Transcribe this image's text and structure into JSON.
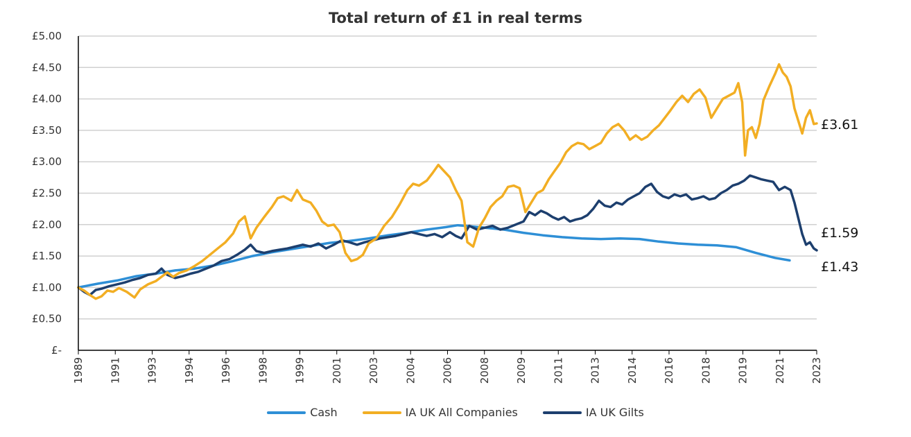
{
  "chart_data": {
    "type": "line",
    "title": "Total return of £1 in real terms",
    "xlabel": "",
    "ylabel": "",
    "ylim": [
      0,
      5
    ],
    "yticks": [
      "£-",
      "£0.50",
      "£1.00",
      "£1.50",
      "£2.00",
      "£2.50",
      "£3.00",
      "£3.50",
      "£4.00",
      "£4.50",
      "£5.00"
    ],
    "xticks": [
      "1989",
      "1991",
      "1993",
      "1994",
      "1996",
      "1998",
      "1999",
      "2001",
      "2003",
      "2004",
      "2006",
      "2008",
      "2009",
      "2011",
      "2013",
      "2014",
      "2016",
      "2018",
      "2019",
      "2021",
      "2023"
    ],
    "grid": "horizontal",
    "legend_position": "bottom",
    "series": [
      {
        "name": "Cash",
        "color": "#2e8fd6",
        "end_label": "£1.43",
        "points": [
          [
            0,
            1.0
          ],
          [
            0.5,
            1.03
          ],
          [
            1,
            1.06
          ],
          [
            2,
            1.11
          ],
          [
            3,
            1.18
          ],
          [
            4,
            1.22
          ],
          [
            5,
            1.27
          ],
          [
            6,
            1.3
          ],
          [
            7,
            1.35
          ],
          [
            8,
            1.42
          ],
          [
            9,
            1.5
          ],
          [
            10,
            1.56
          ],
          [
            11,
            1.61
          ],
          [
            12,
            1.66
          ],
          [
            13,
            1.71
          ],
          [
            14,
            1.74
          ],
          [
            15,
            1.78
          ],
          [
            16,
            1.83
          ],
          [
            17,
            1.87
          ],
          [
            18,
            1.92
          ],
          [
            19,
            1.96
          ],
          [
            19.6,
            1.99
          ],
          [
            20,
            1.98
          ],
          [
            21,
            1.95
          ],
          [
            22,
            1.92
          ],
          [
            23,
            1.87
          ],
          [
            24,
            1.83
          ],
          [
            25,
            1.8
          ],
          [
            26,
            1.78
          ],
          [
            27,
            1.77
          ],
          [
            28,
            1.78
          ],
          [
            29,
            1.77
          ],
          [
            30,
            1.73
          ],
          [
            31,
            1.7
          ],
          [
            32,
            1.68
          ],
          [
            33,
            1.67
          ],
          [
            34,
            1.64
          ],
          [
            35,
            1.55
          ],
          [
            36,
            1.47
          ],
          [
            36.75,
            1.43
          ]
        ]
      },
      {
        "name": "IA UK All Companies",
        "color": "#f2ae23",
        "end_label": "£3.61",
        "points": [
          [
            0,
            1.0
          ],
          [
            0.3,
            0.95
          ],
          [
            0.6,
            0.88
          ],
          [
            0.9,
            0.82
          ],
          [
            1.2,
            0.86
          ],
          [
            1.5,
            0.95
          ],
          [
            1.8,
            0.93
          ],
          [
            2.1,
            0.99
          ],
          [
            2.5,
            0.93
          ],
          [
            2.9,
            0.84
          ],
          [
            3.2,
            0.97
          ],
          [
            3.6,
            1.05
          ],
          [
            4,
            1.1
          ],
          [
            4.3,
            1.17
          ],
          [
            4.6,
            1.24
          ],
          [
            4.9,
            1.17
          ],
          [
            5.2,
            1.23
          ],
          [
            5.6,
            1.27
          ],
          [
            6,
            1.34
          ],
          [
            6.4,
            1.42
          ],
          [
            6.8,
            1.52
          ],
          [
            7.2,
            1.62
          ],
          [
            7.6,
            1.72
          ],
          [
            8,
            1.86
          ],
          [
            8.3,
            2.05
          ],
          [
            8.6,
            2.13
          ],
          [
            8.9,
            1.78
          ],
          [
            9.2,
            1.95
          ],
          [
            9.6,
            2.12
          ],
          [
            10,
            2.28
          ],
          [
            10.3,
            2.42
          ],
          [
            10.6,
            2.45
          ],
          [
            11,
            2.38
          ],
          [
            11.3,
            2.55
          ],
          [
            11.6,
            2.4
          ],
          [
            12,
            2.35
          ],
          [
            12.3,
            2.22
          ],
          [
            12.6,
            2.05
          ],
          [
            12.9,
            1.98
          ],
          [
            13.2,
            2.0
          ],
          [
            13.5,
            1.88
          ],
          [
            13.8,
            1.55
          ],
          [
            14.1,
            1.42
          ],
          [
            14.4,
            1.45
          ],
          [
            14.7,
            1.52
          ],
          [
            15,
            1.7
          ],
          [
            15.4,
            1.78
          ],
          [
            15.8,
            1.98
          ],
          [
            16.2,
            2.12
          ],
          [
            16.6,
            2.32
          ],
          [
            17,
            2.55
          ],
          [
            17.3,
            2.65
          ],
          [
            17.6,
            2.62
          ],
          [
            18,
            2.7
          ],
          [
            18.3,
            2.82
          ],
          [
            18.6,
            2.95
          ],
          [
            18.9,
            2.85
          ],
          [
            19.2,
            2.75
          ],
          [
            19.5,
            2.55
          ],
          [
            19.8,
            2.38
          ],
          [
            20.1,
            1.72
          ],
          [
            20.4,
            1.65
          ],
          [
            20.7,
            1.95
          ],
          [
            21,
            2.1
          ],
          [
            21.3,
            2.28
          ],
          [
            21.6,
            2.38
          ],
          [
            21.9,
            2.45
          ],
          [
            22.2,
            2.6
          ],
          [
            22.5,
            2.62
          ],
          [
            22.8,
            2.58
          ],
          [
            23.1,
            2.2
          ],
          [
            23.4,
            2.35
          ],
          [
            23.7,
            2.5
          ],
          [
            24,
            2.55
          ],
          [
            24.3,
            2.72
          ],
          [
            24.6,
            2.85
          ],
          [
            24.9,
            2.98
          ],
          [
            25.2,
            3.15
          ],
          [
            25.5,
            3.25
          ],
          [
            25.8,
            3.3
          ],
          [
            26.1,
            3.28
          ],
          [
            26.4,
            3.2
          ],
          [
            26.7,
            3.25
          ],
          [
            27,
            3.3
          ],
          [
            27.3,
            3.45
          ],
          [
            27.6,
            3.55
          ],
          [
            27.9,
            3.6
          ],
          [
            28.2,
            3.5
          ],
          [
            28.5,
            3.35
          ],
          [
            28.8,
            3.42
          ],
          [
            29.1,
            3.35
          ],
          [
            29.4,
            3.4
          ],
          [
            29.7,
            3.5
          ],
          [
            30,
            3.58
          ],
          [
            30.3,
            3.7
          ],
          [
            30.6,
            3.82
          ],
          [
            30.9,
            3.95
          ],
          [
            31.2,
            4.05
          ],
          [
            31.5,
            3.95
          ],
          [
            31.8,
            4.08
          ],
          [
            32.1,
            4.15
          ],
          [
            32.4,
            4.02
          ],
          [
            32.7,
            3.7
          ],
          [
            33,
            3.85
          ],
          [
            33.3,
            4.0
          ],
          [
            33.6,
            4.05
          ],
          [
            33.9,
            4.1
          ],
          [
            34.1,
            4.25
          ],
          [
            34.3,
            3.95
          ],
          [
            34.45,
            3.1
          ],
          [
            34.6,
            3.5
          ],
          [
            34.8,
            3.55
          ],
          [
            35,
            3.38
          ],
          [
            35.2,
            3.6
          ],
          [
            35.4,
            3.98
          ],
          [
            35.7,
            4.2
          ],
          [
            36,
            4.4
          ],
          [
            36.2,
            4.55
          ],
          [
            36.4,
            4.42
          ],
          [
            36.6,
            4.35
          ],
          [
            36.8,
            4.2
          ],
          [
            37.0,
            3.85
          ],
          [
            37.2,
            3.65
          ],
          [
            37.4,
            3.45
          ],
          [
            37.6,
            3.7
          ],
          [
            37.8,
            3.82
          ],
          [
            38.0,
            3.6
          ],
          [
            38.15,
            3.61
          ]
        ]
      },
      {
        "name": "IA UK Gilts",
        "color": "#1d3f6e",
        "end_label": "£1.59",
        "points": [
          [
            0,
            1.0
          ],
          [
            0.3,
            0.93
          ],
          [
            0.6,
            0.88
          ],
          [
            0.9,
            0.96
          ],
          [
            1.2,
            0.98
          ],
          [
            1.6,
            1.02
          ],
          [
            2,
            1.05
          ],
          [
            2.4,
            1.08
          ],
          [
            2.8,
            1.12
          ],
          [
            3.2,
            1.15
          ],
          [
            3.6,
            1.2
          ],
          [
            4,
            1.22
          ],
          [
            4.3,
            1.3
          ],
          [
            4.6,
            1.2
          ],
          [
            5,
            1.15
          ],
          [
            5.4,
            1.18
          ],
          [
            5.8,
            1.22
          ],
          [
            6.2,
            1.25
          ],
          [
            6.6,
            1.3
          ],
          [
            7,
            1.35
          ],
          [
            7.4,
            1.42
          ],
          [
            7.8,
            1.45
          ],
          [
            8.2,
            1.52
          ],
          [
            8.6,
            1.6
          ],
          [
            8.9,
            1.68
          ],
          [
            9.2,
            1.58
          ],
          [
            9.6,
            1.55
          ],
          [
            10,
            1.58
          ],
          [
            10.4,
            1.6
          ],
          [
            10.8,
            1.62
          ],
          [
            11.2,
            1.65
          ],
          [
            11.6,
            1.68
          ],
          [
            12,
            1.65
          ],
          [
            12.4,
            1.7
          ],
          [
            12.8,
            1.62
          ],
          [
            13.2,
            1.68
          ],
          [
            13.6,
            1.75
          ],
          [
            14,
            1.72
          ],
          [
            14.4,
            1.68
          ],
          [
            14.8,
            1.72
          ],
          [
            15.2,
            1.75
          ],
          [
            15.6,
            1.78
          ],
          [
            16,
            1.8
          ],
          [
            16.4,
            1.82
          ],
          [
            16.8,
            1.85
          ],
          [
            17.2,
            1.88
          ],
          [
            17.6,
            1.85
          ],
          [
            18,
            1.82
          ],
          [
            18.4,
            1.85
          ],
          [
            18.8,
            1.8
          ],
          [
            19.2,
            1.88
          ],
          [
            19.5,
            1.82
          ],
          [
            19.8,
            1.78
          ],
          [
            20.2,
            1.98
          ],
          [
            20.6,
            1.92
          ],
          [
            21,
            1.95
          ],
          [
            21.4,
            1.98
          ],
          [
            21.8,
            1.92
          ],
          [
            22.2,
            1.95
          ],
          [
            22.6,
            2.0
          ],
          [
            23,
            2.05
          ],
          [
            23.3,
            2.2
          ],
          [
            23.6,
            2.15
          ],
          [
            23.9,
            2.22
          ],
          [
            24.2,
            2.18
          ],
          [
            24.5,
            2.12
          ],
          [
            24.8,
            2.08
          ],
          [
            25.1,
            2.12
          ],
          [
            25.4,
            2.05
          ],
          [
            25.7,
            2.08
          ],
          [
            26,
            2.1
          ],
          [
            26.3,
            2.15
          ],
          [
            26.6,
            2.25
          ],
          [
            26.9,
            2.38
          ],
          [
            27.2,
            2.3
          ],
          [
            27.5,
            2.28
          ],
          [
            27.8,
            2.35
          ],
          [
            28.1,
            2.32
          ],
          [
            28.4,
            2.4
          ],
          [
            28.7,
            2.45
          ],
          [
            29,
            2.5
          ],
          [
            29.3,
            2.6
          ],
          [
            29.6,
            2.65
          ],
          [
            29.9,
            2.52
          ],
          [
            30.2,
            2.45
          ],
          [
            30.5,
            2.42
          ],
          [
            30.8,
            2.48
          ],
          [
            31.1,
            2.45
          ],
          [
            31.4,
            2.48
          ],
          [
            31.7,
            2.4
          ],
          [
            32,
            2.42
          ],
          [
            32.3,
            2.45
          ],
          [
            32.6,
            2.4
          ],
          [
            32.9,
            2.42
          ],
          [
            33.2,
            2.5
          ],
          [
            33.5,
            2.55
          ],
          [
            33.8,
            2.62
          ],
          [
            34.1,
            2.65
          ],
          [
            34.4,
            2.7
          ],
          [
            34.7,
            2.78
          ],
          [
            35,
            2.75
          ],
          [
            35.3,
            2.72
          ],
          [
            35.6,
            2.7
          ],
          [
            35.9,
            2.68
          ],
          [
            36.2,
            2.55
          ],
          [
            36.5,
            2.6
          ],
          [
            36.8,
            2.55
          ],
          [
            37,
            2.35
          ],
          [
            37.2,
            2.1
          ],
          [
            37.4,
            1.85
          ],
          [
            37.6,
            1.68
          ],
          [
            37.8,
            1.72
          ],
          [
            38.0,
            1.62
          ],
          [
            38.15,
            1.59
          ]
        ]
      }
    ]
  }
}
